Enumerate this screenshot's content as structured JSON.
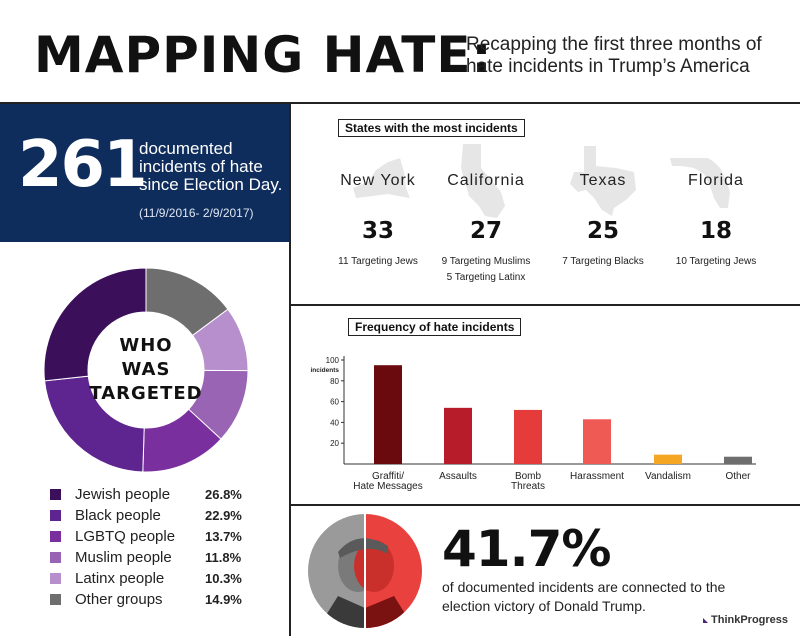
{
  "header": {
    "title": "MAPPING HATE:",
    "subtitle": "Recapping the first three months of hate incidents in Trump’s America"
  },
  "summary": {
    "count": "261",
    "description": "documented incidents of hate since Election Day.",
    "date_range": "(11/9/2016- 2/9/2017)"
  },
  "targets": {
    "label_line1": "WHO",
    "label_line2": "WAS",
    "label_line3": "TARGETED",
    "items": [
      {
        "label": "Jewish people",
        "value": "26.8%",
        "pct": 26.8,
        "color": "#3b0f59"
      },
      {
        "label": "Black people",
        "value": "22.9%",
        "pct": 22.9,
        "color": "#5e2490"
      },
      {
        "label": "LGBTQ people",
        "value": "13.7%",
        "pct": 13.7,
        "color": "#7a2f9e"
      },
      {
        "label": "Muslim people",
        "value": "11.8%",
        "pct": 11.8,
        "color": "#9a64b4"
      },
      {
        "label": "Latinx people",
        "value": "10.3%",
        "pct": 10.3,
        "color": "#b68fcc"
      },
      {
        "label": "Other groups",
        "value": "14.9%",
        "pct": 14.9,
        "color": "#6e6e6e"
      }
    ]
  },
  "states": {
    "title": "States with the most incidents",
    "items": [
      {
        "name": "New York",
        "count": "33",
        "note1": "11 Targeting Jews",
        "note2": ""
      },
      {
        "name": "California",
        "count": "27",
        "note1": "9 Targeting Muslims",
        "note2": "5 Targeting Latinx"
      },
      {
        "name": "Texas",
        "count": "25",
        "note1": "7 Targeting Blacks",
        "note2": ""
      },
      {
        "name": "Florida",
        "count": "18",
        "note1": "10 Targeting Jews",
        "note2": ""
      }
    ]
  },
  "frequency": {
    "title": "Frequency of hate incidents"
  },
  "chart_data": {
    "type": "bar",
    "title": "Frequency of hate incidents",
    "ylabel": "incidents",
    "ylim": [
      0,
      100
    ],
    "yticks": [
      "20",
      "40",
      "60",
      "80",
      "100"
    ],
    "categories": [
      "Graffiti/\nHate Messages",
      "Assaults",
      "Bomb\nThreats",
      "Harassment",
      "Vandalism",
      "Other"
    ],
    "values": [
      95,
      54,
      52,
      43,
      9,
      7
    ],
    "colors": [
      "#6b0a0e",
      "#b71c2a",
      "#e63b3b",
      "#ef5a55",
      "#f5a623",
      "#6e6e6e"
    ],
    "grid": false
  },
  "bottom": {
    "percent": "41.7%",
    "description": "of documented incidents are connected to the election victory of Donald Trump.",
    "brand": "ThinkProgress"
  },
  "colors": {
    "navy": "#0e2d5c",
    "photo_red": "#e8413e"
  }
}
